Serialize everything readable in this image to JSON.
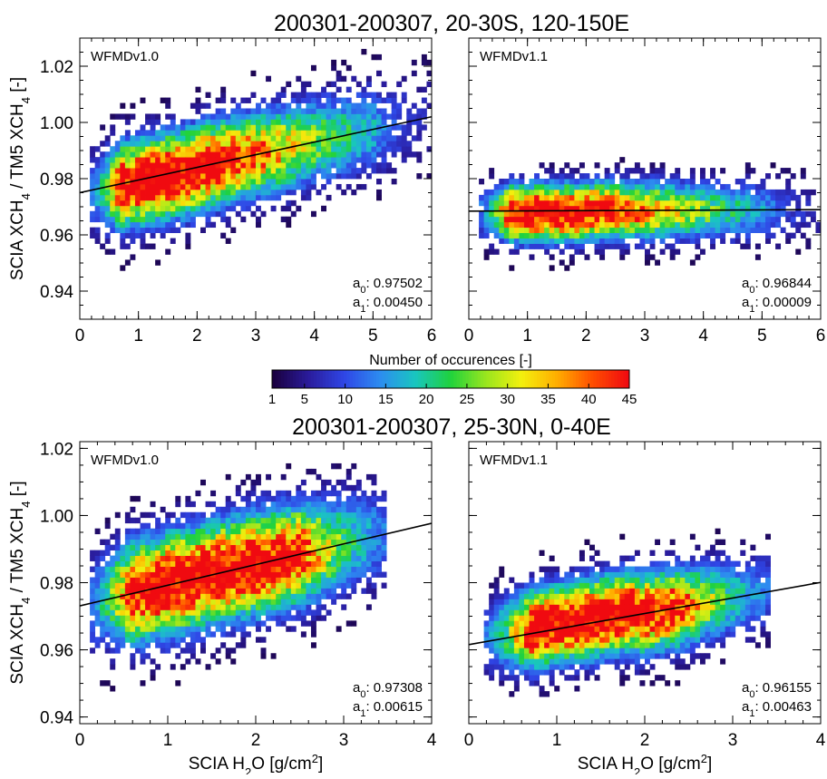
{
  "chart_data": {
    "type": "heatmap",
    "colorbar": {
      "label": "Number of occurences [-]",
      "ticks": [
        "1",
        "5",
        "10",
        "15",
        "20",
        "25",
        "30",
        "35",
        "40",
        "45"
      ],
      "range": [
        1,
        45
      ],
      "colors": [
        "#1a0040",
        "#2a1c9c",
        "#2f46e6",
        "#2d8cf0",
        "#19c6c0",
        "#1fd23c",
        "#9ae61e",
        "#f3f00e",
        "#ffad00",
        "#ff4e00",
        "#f00a10"
      ]
    },
    "groups": [
      {
        "title": "200301-200307, 20-30S, 120-150E",
        "ylabel": "SCIA XCH4 / TM5 XCH4 [-]",
        "xlabel": "",
        "xlim": [
          0,
          6
        ],
        "ylim": [
          0.93,
          1.03
        ],
        "xticks": [
          "0",
          "1",
          "2",
          "3",
          "4",
          "5",
          "6"
        ],
        "yticks": [
          "0.94",
          "0.96",
          "0.98",
          "1.00",
          "1.02"
        ],
        "panels": [
          {
            "label": "WFMDv1.0",
            "a0_label": "a0: ",
            "a0": "0.97502",
            "a1_label": "a1: ",
            "a1": "0.00450",
            "fit": {
              "intercept": 0.97502,
              "slope": 0.0045
            },
            "density": {
              "core_x": 1.5,
              "core_y": 0.981,
              "x_range": [
                0.3,
                6.0
              ],
              "y_spread": 0.009,
              "peak": 45
            }
          },
          {
            "label": "WFMDv1.1",
            "a0_label": "a0: ",
            "a0": "0.96844",
            "a1_label": "a1: ",
            "a1": "0.00009",
            "fit": {
              "intercept": 0.96844,
              "slope": 9e-05
            },
            "density": {
              "core_x": 1.4,
              "core_y": 0.968,
              "x_range": [
                0.3,
                6.0
              ],
              "y_spread": 0.006,
              "peak": 40
            }
          }
        ]
      },
      {
        "title": "200301-200307, 25-30N, 0-40E",
        "ylabel": "SCIA XCH4 / TM5 XCH4 [-]",
        "xlabel": "SCIA H2O [g/cm2]",
        "xlim": [
          0,
          4
        ],
        "ylim": [
          0.938,
          1.022
        ],
        "xticks": [
          "0",
          "1",
          "2",
          "3",
          "4"
        ],
        "yticks": [
          "0.94",
          "0.96",
          "0.98",
          "1.00",
          "1.02"
        ],
        "panels": [
          {
            "label": "WFMDv1.0",
            "a0_label": "a0: ",
            "a0": "0.97308",
            "a1_label": "a1: ",
            "a1": "0.00615",
            "fit": {
              "intercept": 0.97308,
              "slope": 0.00615
            },
            "density": {
              "core_x": 1.4,
              "core_y": 0.982,
              "x_range": [
                0.2,
                3.5
              ],
              "y_spread": 0.009,
              "peak": 40
            }
          },
          {
            "label": "WFMDv1.1",
            "a0_label": "a0: ",
            "a0": "0.96155",
            "a1_label": "a1: ",
            "a1": "0.00463",
            "fit": {
              "intercept": 0.96155,
              "slope": 0.00463
            },
            "density": {
              "core_x": 1.3,
              "core_y": 0.969,
              "x_range": [
                0.3,
                3.4
              ],
              "y_spread": 0.007,
              "peak": 40
            }
          }
        ]
      }
    ]
  }
}
